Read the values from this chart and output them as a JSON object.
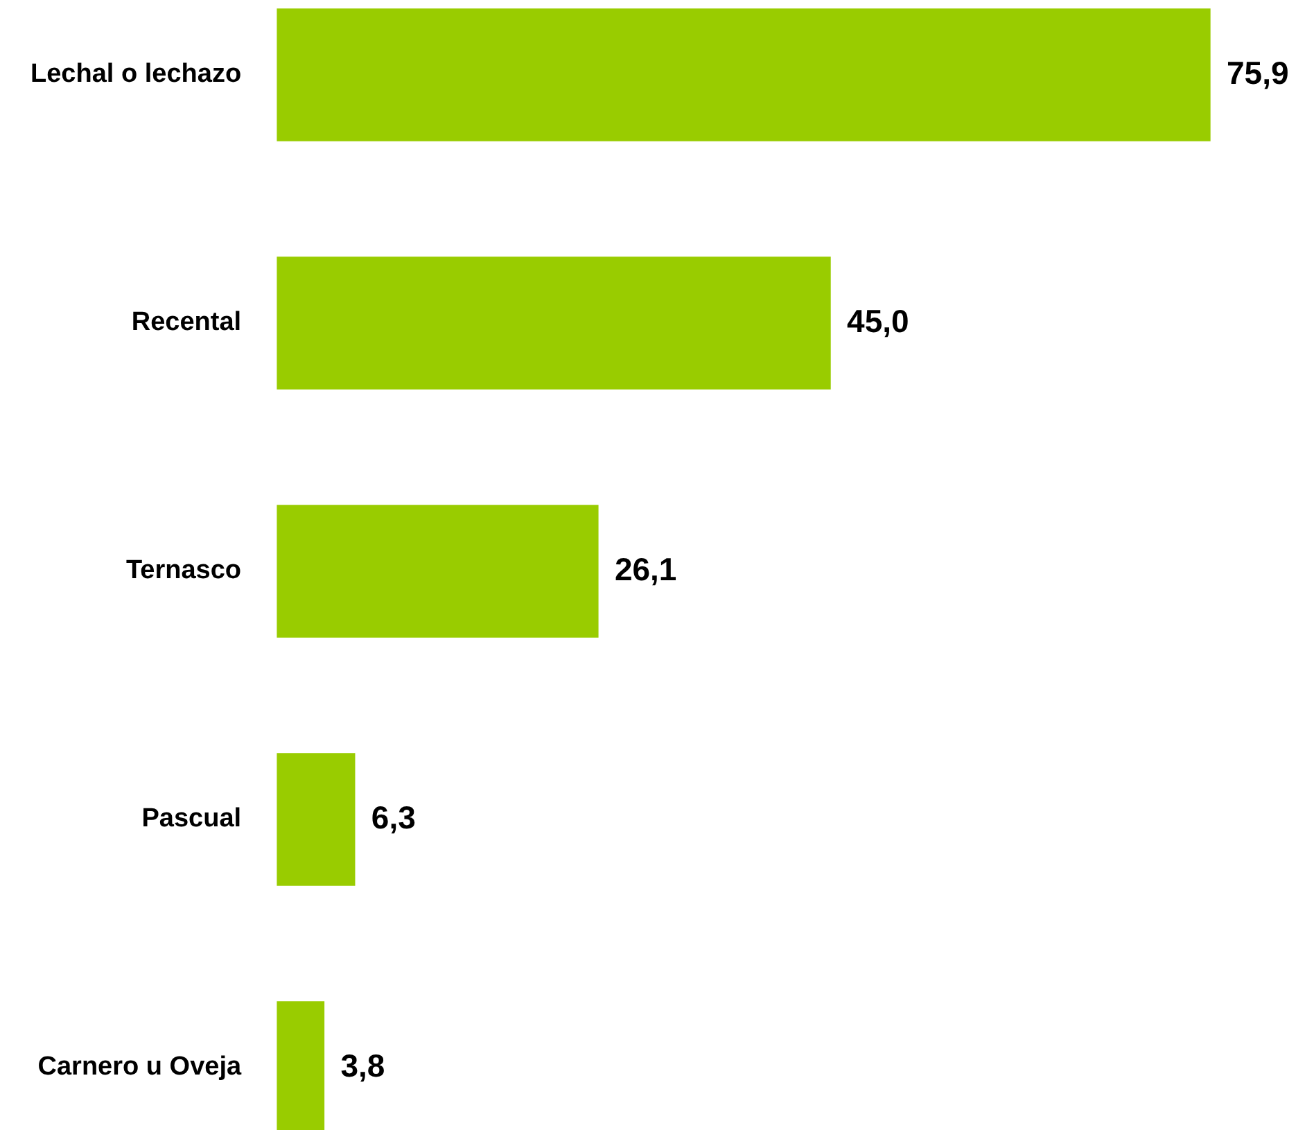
{
  "chart_data": {
    "type": "bar",
    "orientation": "horizontal",
    "categories": [
      "Lechal o lechazo",
      "Recental",
      "Ternasco",
      "Pascual",
      "Carnero u Oveja"
    ],
    "values": [
      75.9,
      45.0,
      26.1,
      6.3,
      3.8
    ],
    "value_labels": [
      "75,9",
      "45,0",
      "26,1",
      "6,3",
      "3,8"
    ],
    "color": "#99cc00",
    "grid": false,
    "legend": false,
    "tick_labels": "y"
  }
}
